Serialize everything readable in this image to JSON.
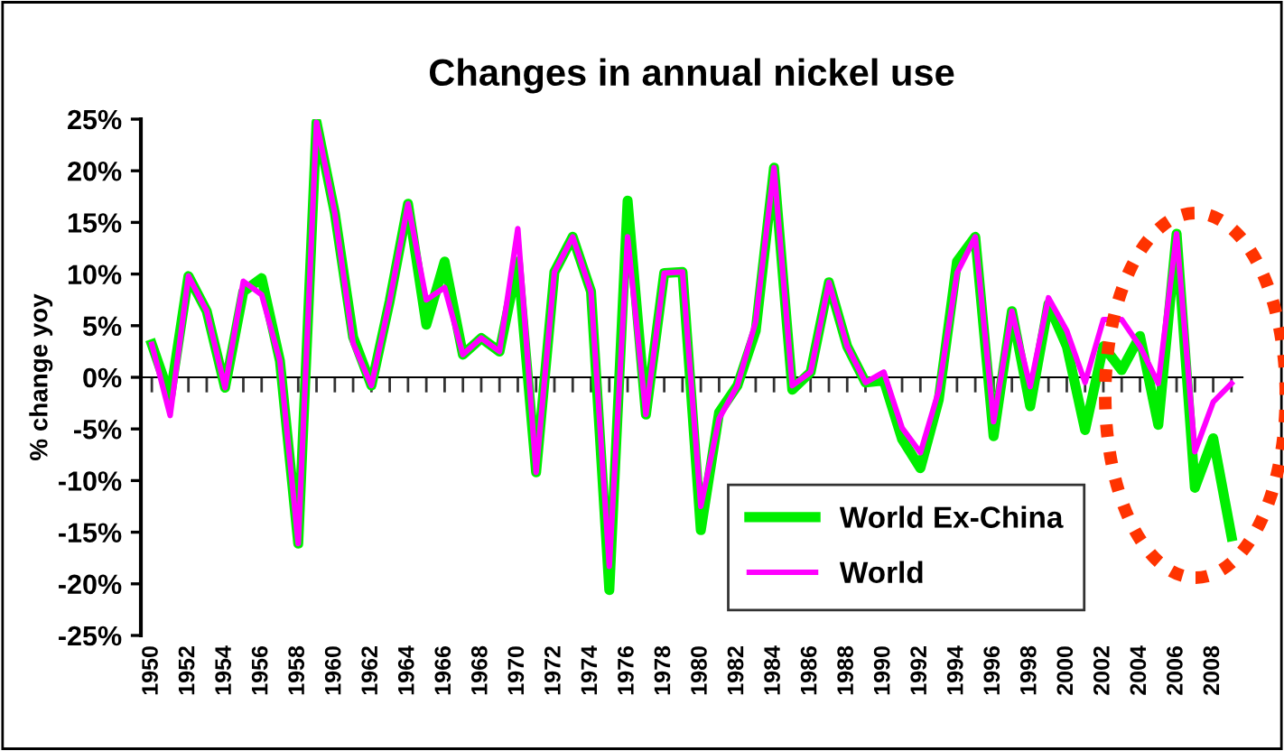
{
  "chart_data": {
    "type": "line",
    "title": "Changes in annual nickel use",
    "ylabel": "% change yoy",
    "x": [
      1950,
      1951,
      1952,
      1953,
      1954,
      1955,
      1956,
      1957,
      1958,
      1959,
      1960,
      1961,
      1962,
      1963,
      1964,
      1965,
      1966,
      1967,
      1968,
      1969,
      1970,
      1971,
      1972,
      1973,
      1974,
      1975,
      1976,
      1977,
      1978,
      1979,
      1980,
      1981,
      1982,
      1983,
      1984,
      1985,
      1986,
      1987,
      1988,
      1989,
      1990,
      1991,
      1992,
      1993,
      1994,
      1995,
      1996,
      1997,
      1998,
      1999,
      2000,
      2001,
      2002,
      2003,
      2004,
      2005,
      2006,
      2007,
      2008,
      2009
    ],
    "series": [
      {
        "name": "World Ex-China",
        "color": "#00ee00",
        "values": [
          3.2,
          -1.9,
          9.8,
          6.4,
          -1.0,
          8.3,
          9.6,
          1.6,
          -16.1,
          24.7,
          15.9,
          3.9,
          -0.8,
          7.4,
          16.8,
          5.1,
          11.2,
          2.2,
          3.8,
          2.5,
          11.2,
          -9.2,
          10.2,
          13.6,
          8.3,
          -20.6,
          17.1,
          -3.6,
          10.1,
          10.2,
          -14.8,
          -3.4,
          -0.8,
          4.5,
          20.3,
          -1.2,
          0.5,
          9.2,
          3.0,
          -0.5,
          -0.3,
          -6.0,
          -8.8,
          -2.2,
          11.2,
          13.6,
          -5.7,
          6.4,
          -2.8,
          7.1,
          3.0,
          -5.1,
          3.0,
          0.7,
          4.0,
          -4.6,
          13.9,
          -10.7,
          -5.9,
          -15.4
        ]
      },
      {
        "name": "World",
        "color": "#ff00ff",
        "values": [
          3.2,
          -3.7,
          9.8,
          6.4,
          -1.0,
          9.3,
          8.0,
          1.6,
          -16.1,
          24.7,
          15.9,
          3.3,
          -0.8,
          7.4,
          16.8,
          7.5,
          8.7,
          2.2,
          3.8,
          2.5,
          14.4,
          -9.2,
          10.2,
          13.6,
          8.3,
          -18.3,
          13.6,
          -3.6,
          10.1,
          10.2,
          -12.5,
          -4.0,
          -0.8,
          5.4,
          20.3,
          -0.8,
          0.5,
          9.2,
          3.0,
          -0.5,
          0.5,
          -4.9,
          -7.3,
          -1.3,
          10.1,
          13.6,
          -4.3,
          6.4,
          -0.9,
          7.7,
          4.5,
          -0.5,
          5.6,
          5.6,
          3.0,
          -0.6,
          13.9,
          -7.2,
          -2.4,
          -0.6
        ]
      }
    ],
    "xlim": [
      1949.4,
      2009.6
    ],
    "ylim": [
      -25,
      25
    ],
    "xticks": [
      1950,
      {
        "value": 1951,
        "label": null
      },
      1952,
      {
        "value": 1953,
        "label": null
      },
      1954,
      {
        "value": 1955,
        "label": null
      },
      1956,
      {
        "value": 1957,
        "label": null
      },
      1958,
      {
        "value": 1959,
        "label": null
      },
      1960,
      {
        "value": 1961,
        "label": null
      },
      1962,
      {
        "value": 1963,
        "label": null
      },
      1964,
      {
        "value": 1965,
        "label": null
      },
      1966,
      {
        "value": 1967,
        "label": null
      },
      1968,
      {
        "value": 1969,
        "label": null
      },
      1970,
      {
        "value": 1971,
        "label": null
      },
      1972,
      {
        "value": 1973,
        "label": null
      },
      1974,
      {
        "value": 1975,
        "label": null
      },
      1976,
      {
        "value": 1977,
        "label": null
      },
      1978,
      {
        "value": 1979,
        "label": null
      },
      1980,
      {
        "value": 1981,
        "label": null
      },
      1982,
      {
        "value": 1983,
        "label": null
      },
      1984,
      {
        "value": 1985,
        "label": null
      },
      1986,
      {
        "value": 1987,
        "label": null
      },
      1988,
      {
        "value": 1989,
        "label": null
      },
      1990,
      {
        "value": 1991,
        "label": null
      },
      1992,
      {
        "value": 1993,
        "label": null
      },
      1994,
      {
        "value": 1995,
        "label": null
      },
      1996,
      {
        "value": 1997,
        "label": null
      },
      1998,
      {
        "value": 1999,
        "label": null
      },
      2000,
      {
        "value": 2001,
        "label": null
      },
      2002,
      {
        "value": 2003,
        "label": null
      },
      2004,
      {
        "value": 2005,
        "label": null
      },
      2006,
      {
        "value": 2007,
        "label": null
      },
      2008,
      {
        "value": 2009,
        "label": null
      }
    ],
    "yticks": [
      {
        "value": 25,
        "label": "25%"
      },
      {
        "value": 20,
        "label": "20%"
      },
      {
        "value": 15,
        "label": "15%"
      },
      {
        "value": 10,
        "label": "10%"
      },
      {
        "value": 5,
        "label": "5%"
      },
      {
        "value": 0,
        "label": "0%"
      },
      {
        "value": -5,
        "label": "-5%"
      },
      {
        "value": -10,
        "label": "-10%"
      },
      {
        "value": -15,
        "label": "-15%"
      },
      {
        "value": -20,
        "label": "-20%"
      },
      {
        "value": -25,
        "label": "-25%"
      }
    ],
    "legend": "bottom right",
    "marker": "none",
    "line_style": "solid"
  }
}
